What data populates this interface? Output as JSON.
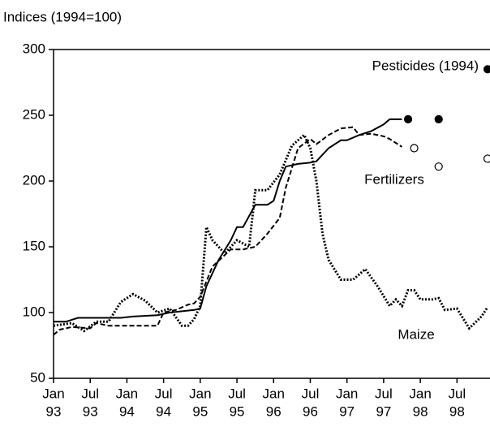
{
  "chart_data": {
    "type": "line",
    "ylabel": "Indices (1994=100)",
    "ylim": [
      50,
      300
    ],
    "yticks": [
      50,
      100,
      150,
      200,
      250,
      300
    ],
    "xlim": [
      "1993-01",
      "1998-12"
    ],
    "xticks": [
      {
        "value": "1993-01",
        "label": [
          "Jan",
          "93"
        ]
      },
      {
        "value": "1993-07",
        "label": [
          "Jul",
          "93"
        ]
      },
      {
        "value": "1994-01",
        "label": [
          "Jan",
          "94"
        ]
      },
      {
        "value": "1994-07",
        "label": [
          "Jul",
          "94"
        ]
      },
      {
        "value": "1995-01",
        "label": [
          "Jan",
          "95"
        ]
      },
      {
        "value": "1995-07",
        "label": [
          "Jul",
          "95"
        ]
      },
      {
        "value": "1996-01",
        "label": [
          "Jan",
          "96"
        ]
      },
      {
        "value": "1996-07",
        "label": [
          "Jul",
          "96"
        ]
      },
      {
        "value": "1997-01",
        "label": [
          "Jan",
          "97"
        ]
      },
      {
        "value": "1997-07",
        "label": [
          "Jul",
          "97"
        ]
      },
      {
        "value": "1998-01",
        "label": [
          "Jan",
          "98"
        ]
      },
      {
        "value": "1998-07",
        "label": [
          "Jul",
          "98"
        ]
      }
    ],
    "series": [
      {
        "name": "Pesticides (1994)",
        "color": "#000000",
        "dash": "none",
        "x": [
          "1993-01",
          "1993-03",
          "1993-05",
          "1993-12",
          "1994-02",
          "1994-06",
          "1994-08",
          "1994-12",
          "1995-01",
          "1995-02",
          "1995-04",
          "1995-06",
          "1995-07",
          "1995-08",
          "1995-10",
          "1995-12",
          "1996-01",
          "1996-02",
          "1996-03",
          "1996-05",
          "1996-07",
          "1996-08",
          "1996-10",
          "1996-12",
          "1997-01",
          "1997-03",
          "1997-05",
          "1997-07",
          "1997-08",
          "1997-10"
        ],
        "values": [
          93,
          93,
          96,
          96,
          97,
          98,
          100,
          102,
          103,
          120,
          140,
          155,
          165,
          165,
          182,
          182,
          185,
          200,
          211,
          213,
          214,
          215,
          225,
          231,
          231,
          235,
          238,
          243,
          247,
          247
        ],
        "projection": {
          "filled": true,
          "x": [
            "1997-11",
            "1998-04",
            "1998-12"
          ],
          "values": [
            247,
            247,
            285
          ]
        }
      },
      {
        "name": "Fertilizers",
        "color": "#000000",
        "dash": "6 3",
        "x": [
          "1993-01",
          "1993-02",
          "1993-04",
          "1993-07",
          "1993-08",
          "1993-10",
          "1993-12",
          "1994-06",
          "1994-07",
          "1994-09",
          "1994-11",
          "1994-12",
          "1995-01",
          "1995-03",
          "1995-06",
          "1995-08",
          "1995-10",
          "1995-12",
          "1996-02",
          "1996-03",
          "1996-05",
          "1996-07",
          "1996-08",
          "1996-10",
          "1996-12",
          "1997-02",
          "1997-03",
          "1997-05",
          "1997-07",
          "1997-08",
          "1997-10"
        ],
        "values": [
          83,
          87,
          89,
          88,
          92,
          90,
          90,
          90,
          100,
          102,
          106,
          107,
          112,
          135,
          148,
          148,
          150,
          160,
          172,
          195,
          225,
          232,
          228,
          235,
          240,
          241,
          235,
          236,
          234,
          232,
          226
        ],
        "projection": {
          "filled": false,
          "x": [
            "1997-12",
            "1998-04",
            "1998-12"
          ],
          "values": [
            225,
            211,
            217
          ]
        }
      },
      {
        "name": "Maize",
        "color": "#000000",
        "dash": "2 2",
        "x": [
          "1993-01",
          "1993-04",
          "1993-06",
          "1993-08",
          "1993-10",
          "1993-12",
          "1994-02",
          "1994-04",
          "1994-06",
          "1994-08",
          "1994-10",
          "1994-11",
          "1994-12",
          "1995-01",
          "1995-02",
          "1995-03",
          "1995-05",
          "1995-07",
          "1995-09",
          "1995-10",
          "1995-12",
          "1996-02",
          "1996-04",
          "1996-06",
          "1996-07",
          "1996-08",
          "1996-09",
          "1996-10",
          "1996-12",
          "1997-02",
          "1997-04",
          "1997-06",
          "1997-08",
          "1997-09",
          "1997-10",
          "1997-11",
          "1997-12",
          "1998-01",
          "1998-03",
          "1998-04",
          "1998-05",
          "1998-07",
          "1998-09",
          "1998-11",
          "1998-12"
        ],
        "values": [
          90,
          92,
          86,
          93,
          93,
          108,
          114,
          109,
          100,
          103,
          90,
          90,
          95,
          105,
          165,
          155,
          145,
          155,
          150,
          193,
          193,
          205,
          227,
          235,
          225,
          200,
          160,
          140,
          125,
          125,
          133,
          120,
          105,
          110,
          105,
          117,
          117,
          110,
          110,
          111,
          102,
          103,
          88,
          97,
          104
        ]
      }
    ]
  }
}
